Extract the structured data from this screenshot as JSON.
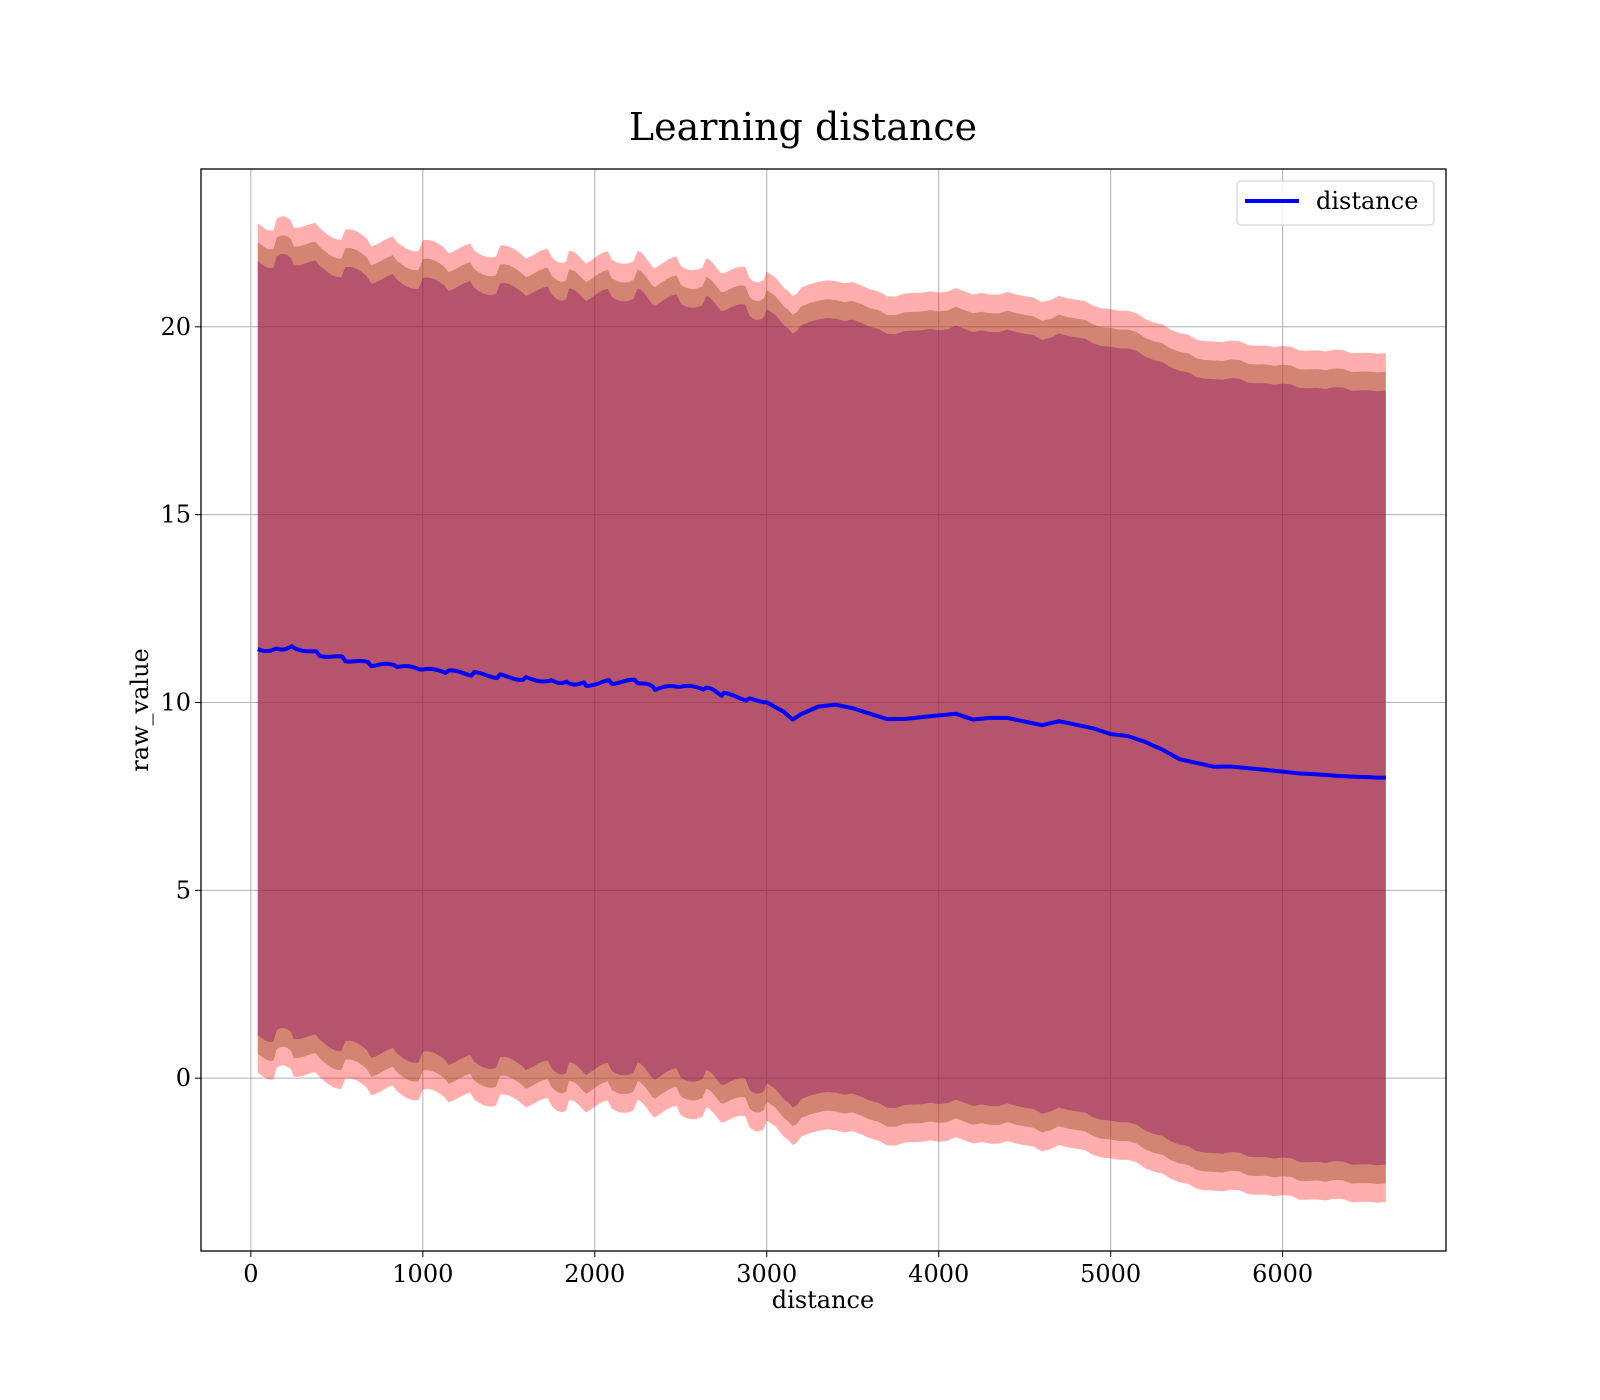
{
  "chart_data": {
    "type": "line",
    "title": "Learning distance",
    "xlabel": "distance",
    "ylabel": "raw_value",
    "xlim": [
      -290,
      6950
    ],
    "ylim": [
      -4.6,
      24.2
    ],
    "xticks": [
      0,
      1000,
      2000,
      3000,
      4000,
      5000,
      6000
    ],
    "yticks": [
      0,
      5,
      10,
      15,
      20
    ],
    "grid": true,
    "legend_position": "top-right",
    "colors": {
      "line": "#0000ff",
      "band_outer": "#ff000059",
      "band_middle": "#a0522d55",
      "band_inner": "#800080",
      "grid": "#b0b0b0",
      "axes": "#000000"
    },
    "series": [
      {
        "name": "distance",
        "x": [
          40,
          150,
          250,
          400,
          550,
          700,
          850,
          1000,
          1150,
          1300,
          1450,
          1600,
          1750,
          1850,
          1950,
          2100,
          2250,
          2350,
          2500,
          2650,
          2750,
          2900,
          3000,
          3100,
          3150,
          3200,
          3300,
          3400,
          3500,
          3600,
          3700,
          3800,
          3900,
          4000,
          4100,
          4200,
          4300,
          4400,
          4500,
          4600,
          4700,
          4800,
          4900,
          5000,
          5100,
          5200,
          5300,
          5400,
          5500,
          5600,
          5700,
          5800,
          5900,
          6000,
          6100,
          6200,
          6300,
          6400,
          6500,
          6600
        ],
        "values": [
          11.4,
          11.45,
          11.5,
          11.3,
          11.15,
          11.0,
          10.95,
          10.85,
          10.8,
          10.75,
          10.7,
          10.65,
          10.6,
          10.55,
          10.5,
          10.55,
          10.55,
          10.35,
          10.4,
          10.35,
          10.2,
          10.1,
          10.0,
          9.75,
          9.55,
          9.7,
          9.9,
          9.95,
          9.85,
          9.7,
          9.55,
          9.55,
          9.6,
          9.65,
          9.7,
          9.55,
          9.6,
          9.6,
          9.5,
          9.4,
          9.5,
          9.4,
          9.3,
          9.15,
          9.1,
          8.95,
          8.75,
          8.5,
          8.4,
          8.3,
          8.3,
          8.25,
          8.2,
          8.15,
          8.1,
          8.08,
          8.05,
          8.03,
          8.02,
          8.0
        ]
      }
    ],
    "bands": [
      {
        "lower_offset": -11.3,
        "upper_offset": 11.3
      },
      {
        "lower_offset": -10.8,
        "upper_offset": 10.8
      },
      {
        "lower_offset": -10.3,
        "upper_offset": 10.3
      }
    ]
  }
}
